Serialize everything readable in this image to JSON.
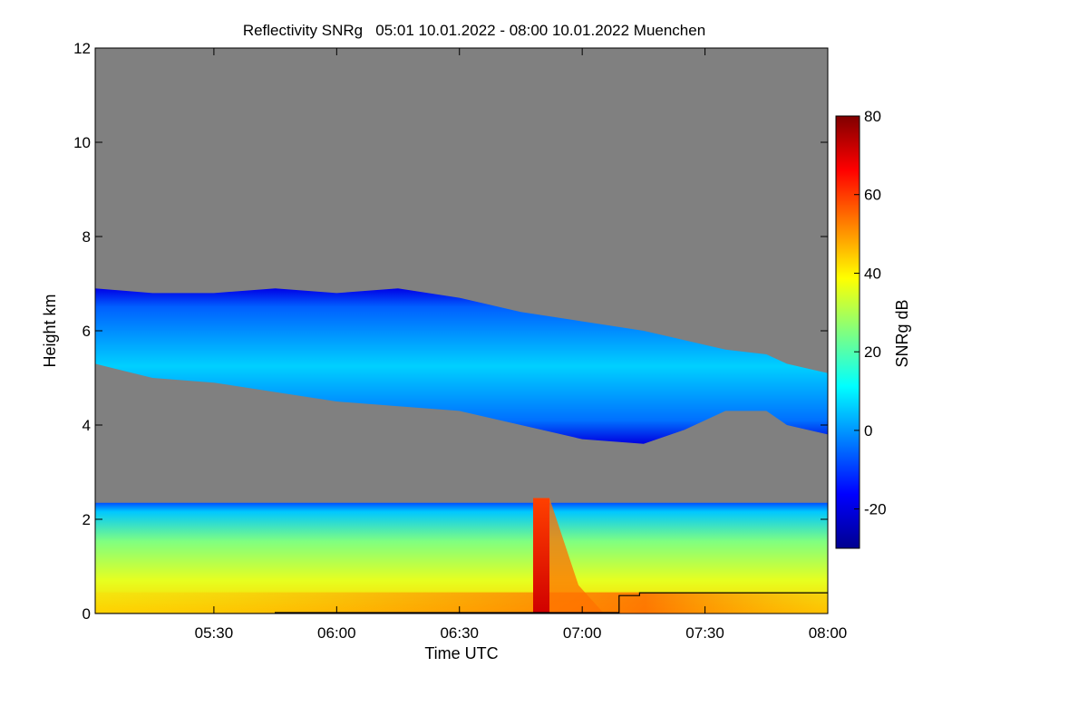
{
  "chart_data": {
    "type": "heatmap",
    "title": "Reflectivity SNRg   05:01 10.01.2022 - 08:00 10.01.2022 Muenchen",
    "xlabel": "Time UTC",
    "ylabel": "Height km",
    "x_range_minutes_utc": [
      301,
      480
    ],
    "y_range_km": [
      0,
      12
    ],
    "x_ticks": [
      {
        "minute": 330,
        "label": "05:30"
      },
      {
        "minute": 360,
        "label": "06:00"
      },
      {
        "minute": 390,
        "label": "06:30"
      },
      {
        "minute": 420,
        "label": "07:00"
      },
      {
        "minute": 450,
        "label": "07:30"
      },
      {
        "minute": 480,
        "label": "08:00"
      }
    ],
    "y_ticks": [
      {
        "value": 0,
        "label": "0"
      },
      {
        "value": 2,
        "label": "2"
      },
      {
        "value": 4,
        "label": "4"
      },
      {
        "value": 6,
        "label": "6"
      },
      {
        "value": 8,
        "label": "8"
      },
      {
        "value": 10,
        "label": "10"
      },
      {
        "value": 12,
        "label": "12"
      }
    ],
    "colorbar": {
      "label": "SNRg dB",
      "range": [
        -30,
        80
      ],
      "ticks": [
        {
          "value": -20,
          "label": "-20"
        },
        {
          "value": 0,
          "label": "0"
        },
        {
          "value": 20,
          "label": "20"
        },
        {
          "value": 40,
          "label": "40"
        },
        {
          "value": 60,
          "label": "60"
        },
        {
          "value": 80,
          "label": "80"
        }
      ],
      "colors": [
        "#00008f",
        "#0000ff",
        "#0080ff",
        "#00ffff",
        "#80ff80",
        "#ffff00",
        "#ff8000",
        "#ff0000",
        "#800000"
      ]
    },
    "no_signal_color": "#808080",
    "upper_cloud_layer": {
      "minutes": [
        301,
        315,
        330,
        345,
        360,
        375,
        390,
        405,
        420,
        435,
        445,
        455,
        465,
        470,
        480
      ],
      "top_km": [
        6.9,
        6.8,
        6.8,
        6.9,
        6.8,
        6.9,
        6.7,
        6.4,
        6.2,
        6.0,
        5.8,
        5.6,
        5.5,
        5.3,
        5.1
      ],
      "base_km": [
        5.3,
        5.0,
        4.9,
        4.7,
        4.5,
        4.4,
        4.3,
        4.0,
        3.7,
        3.6,
        3.9,
        4.3,
        4.3,
        4.0,
        3.8
      ],
      "snr_db_approx": 5
    },
    "lower_layer": {
      "top_km": 2.35,
      "snr_db_range": [
        5,
        45
      ],
      "enhanced_column": {
        "minute_start": 408,
        "minute_end": 412,
        "snr_db_approx": 70
      }
    },
    "black_line": {
      "minutes": [
        301,
        345,
        345,
        429,
        429,
        434,
        434,
        480
      ],
      "height_km": [
        0,
        0,
        0.02,
        0.02,
        0.38,
        0.38,
        0.44,
        0.44
      ]
    }
  }
}
